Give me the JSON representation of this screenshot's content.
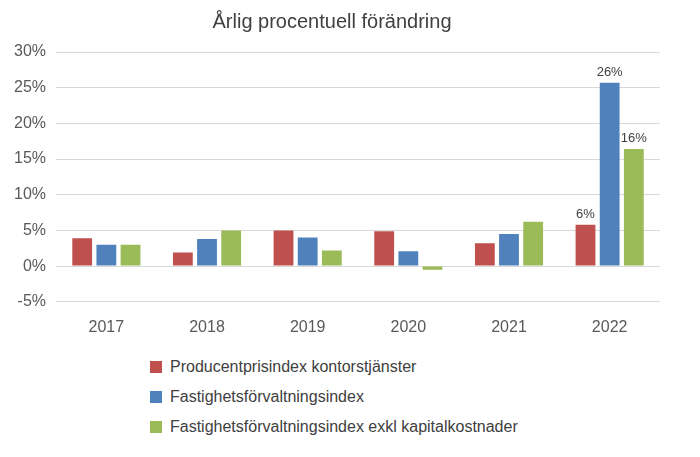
{
  "chart_data": {
    "type": "bar",
    "title": "Årlig procentuell förändring",
    "categories": [
      "2017",
      "2018",
      "2019",
      "2020",
      "2021",
      "2022"
    ],
    "series": [
      {
        "name": "Producentprisindex kontorstjänster",
        "color": "#C0504D",
        "values": [
          3.9,
          1.9,
          5.0,
          4.9,
          3.2,
          5.8
        ],
        "value_labels": [
          null,
          null,
          null,
          null,
          null,
          "6%"
        ]
      },
      {
        "name": "Fastighetsförvaltningsindex",
        "color": "#4F81BD",
        "values": [
          3.0,
          3.8,
          4.0,
          2.1,
          4.5,
          25.7
        ],
        "value_labels": [
          null,
          null,
          null,
          null,
          null,
          "26%"
        ]
      },
      {
        "name": "Fastighetsförvaltningsindex exkl kapitalkostnader",
        "color": "#9BBB59",
        "values": [
          3.0,
          5.0,
          2.2,
          -0.5,
          6.2,
          16.4
        ],
        "value_labels": [
          null,
          null,
          null,
          null,
          null,
          "16%"
        ]
      }
    ],
    "ylim": [
      -5,
      30
    ],
    "yticks": [
      {
        "value": -5,
        "label": "-5%"
      },
      {
        "value": 0,
        "label": "0%"
      },
      {
        "value": 5,
        "label": "5%"
      },
      {
        "value": 10,
        "label": "10%"
      },
      {
        "value": 15,
        "label": "15%"
      },
      {
        "value": 20,
        "label": "20%"
      },
      {
        "value": 25,
        "label": "25%"
      },
      {
        "value": 30,
        "label": "30%"
      }
    ],
    "grid": true,
    "legend": "bottom"
  }
}
